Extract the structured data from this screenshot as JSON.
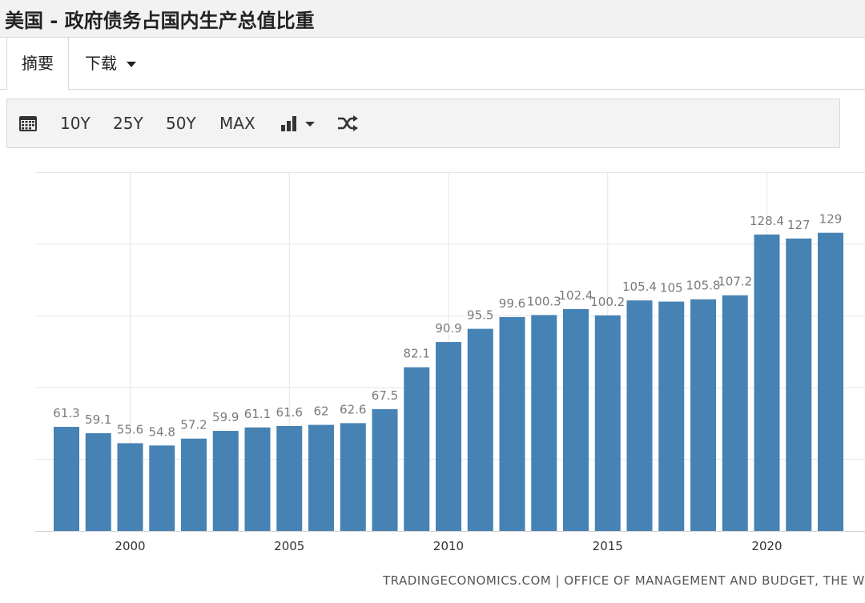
{
  "page": {
    "title": "美国 - 政府债务占国内生产总值比重"
  },
  "tabs": [
    {
      "label": "摘要"
    },
    {
      "label": "下载"
    }
  ],
  "toolbar": {
    "ranges": [
      "10Y",
      "25Y",
      "50Y",
      "MAX"
    ],
    "icons": [
      "calendar-icon",
      "bar-chart-icon",
      "chevron-down-icon",
      "shuffle-icon"
    ]
  },
  "colors": {
    "bar": "#4682b4",
    "label": "#7a7a7a",
    "grid": "#e6e6e6"
  },
  "source": "TRADINGECONOMICS.COM | OFFICE OF MANAGEMENT AND BUDGET, THE WHITE HOUSE",
  "chart_data": {
    "type": "bar",
    "title": "",
    "xlabel": "",
    "ylabel": "",
    "x": [
      1998,
      1999,
      2000,
      2001,
      2002,
      2003,
      2004,
      2005,
      2006,
      2007,
      2008,
      2009,
      2010,
      2011,
      2012,
      2013,
      2014,
      2015,
      2016,
      2017,
      2018,
      2019,
      2020,
      2021,
      2022
    ],
    "values": [
      61.3,
      59.1,
      55.6,
      54.8,
      57.2,
      59.9,
      61.1,
      61.6,
      62,
      62.6,
      67.5,
      82.1,
      90.9,
      95.5,
      99.6,
      100.3,
      102.4,
      100.2,
      105.4,
      105,
      105.8,
      107.2,
      128.4,
      127,
      129
    ],
    "data_labels": [
      "61.3",
      "59.1",
      "55.6",
      "54.8",
      "57.2",
      "59.9",
      "61.1",
      "61.6",
      "62",
      "62.6",
      "67.5",
      "82.1",
      "90.9",
      "95.5",
      "99.6",
      "100.3",
      "102.4",
      "100.2",
      "105.4",
      "105",
      "105.8",
      "107.2",
      "128.4",
      "127",
      "129"
    ],
    "x_ticks": [
      "2000",
      "2005",
      "2010",
      "2015",
      "2020"
    ],
    "grid": true,
    "legend": "none"
  }
}
